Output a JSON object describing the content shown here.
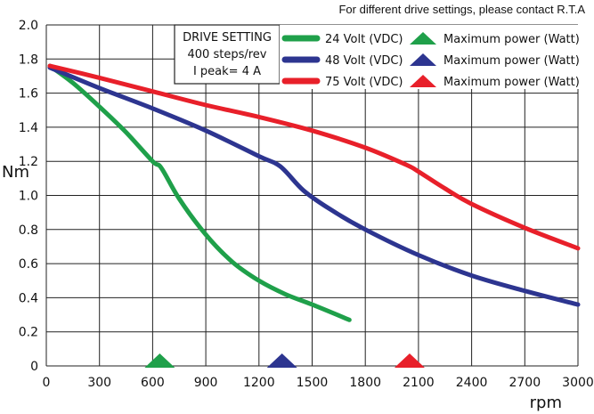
{
  "chart_data": {
    "type": "line",
    "title": "For different drive settings, please contact R.T.A",
    "xlabel": "rpm",
    "ylabel": "Nm",
    "xlim": [
      0,
      3000
    ],
    "ylim": [
      0,
      2.0
    ],
    "xticks": [
      0,
      300,
      600,
      900,
      1200,
      1500,
      1800,
      2100,
      2400,
      2700,
      3000
    ],
    "xtick_labels": [
      "0",
      "300",
      "600",
      "900",
      "1200",
      "1500",
      "1800",
      "2100",
      "2400",
      "2700",
      "3000"
    ],
    "yticks": [
      0,
      0.2,
      0.4,
      0.6,
      0.8,
      1.0,
      1.2,
      1.4,
      1.6,
      1.8,
      2.0
    ],
    "ytick_labels": [
      "0",
      "0.2",
      "0.4",
      "0.6",
      "0.8",
      "1.0",
      "1.2",
      "1.4",
      "1.6",
      "1.8",
      "2.0"
    ],
    "grid": true,
    "drive_setting": {
      "title": "DRIVE SETTING",
      "line1": "400 steps/rev",
      "line2": "I peak= 4 A"
    },
    "series": [
      {
        "name": "24 Volt (VDC)",
        "color": "#1fa04a",
        "x": [
          20,
          150,
          300,
          450,
          600,
          650,
          750,
          900,
          1050,
          1200,
          1350,
          1500,
          1710
        ],
        "y": [
          1.76,
          1.66,
          1.52,
          1.37,
          1.2,
          1.16,
          0.98,
          0.77,
          0.61,
          0.5,
          0.42,
          0.36,
          0.27
        ]
      },
      {
        "name": "48 Volt (VDC)",
        "color": "#2d3590",
        "x": [
          20,
          300,
          600,
          900,
          1200,
          1320,
          1450,
          1600,
          1800,
          2100,
          2400,
          2700,
          3000
        ],
        "y": [
          1.75,
          1.63,
          1.51,
          1.38,
          1.23,
          1.17,
          1.03,
          0.92,
          0.8,
          0.65,
          0.53,
          0.44,
          0.36
        ]
      },
      {
        "name": "75 Volt (VDC)",
        "color": "#e8202a",
        "x": [
          20,
          300,
          600,
          900,
          1200,
          1500,
          1800,
          2030,
          2100,
          2250,
          2400,
          2700,
          3000
        ],
        "y": [
          1.76,
          1.69,
          1.61,
          1.53,
          1.46,
          1.38,
          1.28,
          1.18,
          1.14,
          1.04,
          0.95,
          0.81,
          0.69
        ]
      }
    ],
    "markers": [
      {
        "name": "Maximum power (Watt)",
        "series": "24 Volt (VDC)",
        "x": 640,
        "color": "#1fa04a"
      },
      {
        "name": "Maximum power (Watt)",
        "series": "48 Volt (VDC)",
        "x": 1330,
        "color": "#2d3590"
      },
      {
        "name": "Maximum power (Watt)",
        "series": "75 Volt (VDC)",
        "x": 2050,
        "color": "#e8202a"
      }
    ]
  }
}
